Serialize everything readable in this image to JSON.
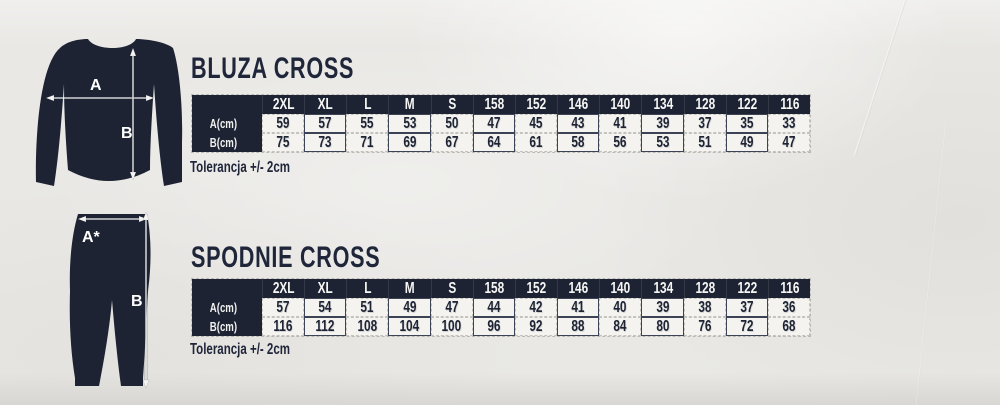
{
  "page": {
    "paper_color": "#e9e8e5",
    "ink_color": "#1d2333"
  },
  "sections": [
    {
      "id": "bluza",
      "title": "BLUZA CROSS",
      "tolerance_note": "Tolerancja +/- 2cm",
      "illustration": "sweatshirt",
      "dim_labels": {
        "a": "A",
        "b": "B"
      },
      "table": {
        "row_labels": [
          "A(cm)",
          "B(cm)"
        ],
        "sizes": [
          "2XL",
          "XL",
          "L",
          "M",
          "S",
          "158",
          "152",
          "146",
          "140",
          "134",
          "128",
          "122",
          "116"
        ],
        "rows": [
          [
            59,
            57,
            55,
            53,
            50,
            47,
            45,
            43,
            41,
            39,
            37,
            35,
            33
          ],
          [
            75,
            73,
            71,
            69,
            67,
            64,
            61,
            58,
            56,
            53,
            51,
            49,
            47
          ]
        ]
      }
    },
    {
      "id": "spodnie",
      "title": "SPODNIE CROSS",
      "tolerance_note": "Tolerancja +/- 2cm",
      "illustration": "pants",
      "dim_labels": {
        "a": "A*",
        "b": "B"
      },
      "table": {
        "row_labels": [
          "A(cm)",
          "B(cm)"
        ],
        "sizes": [
          "2XL",
          "XL",
          "L",
          "M",
          "S",
          "158",
          "152",
          "146",
          "140",
          "134",
          "128",
          "122",
          "116"
        ],
        "rows": [
          [
            57,
            54,
            51,
            49,
            47,
            44,
            42,
            41,
            40,
            39,
            38,
            37,
            36
          ],
          [
            116,
            112,
            108,
            104,
            100,
            96,
            92,
            88,
            84,
            80,
            76,
            72,
            68
          ]
        ]
      }
    }
  ]
}
